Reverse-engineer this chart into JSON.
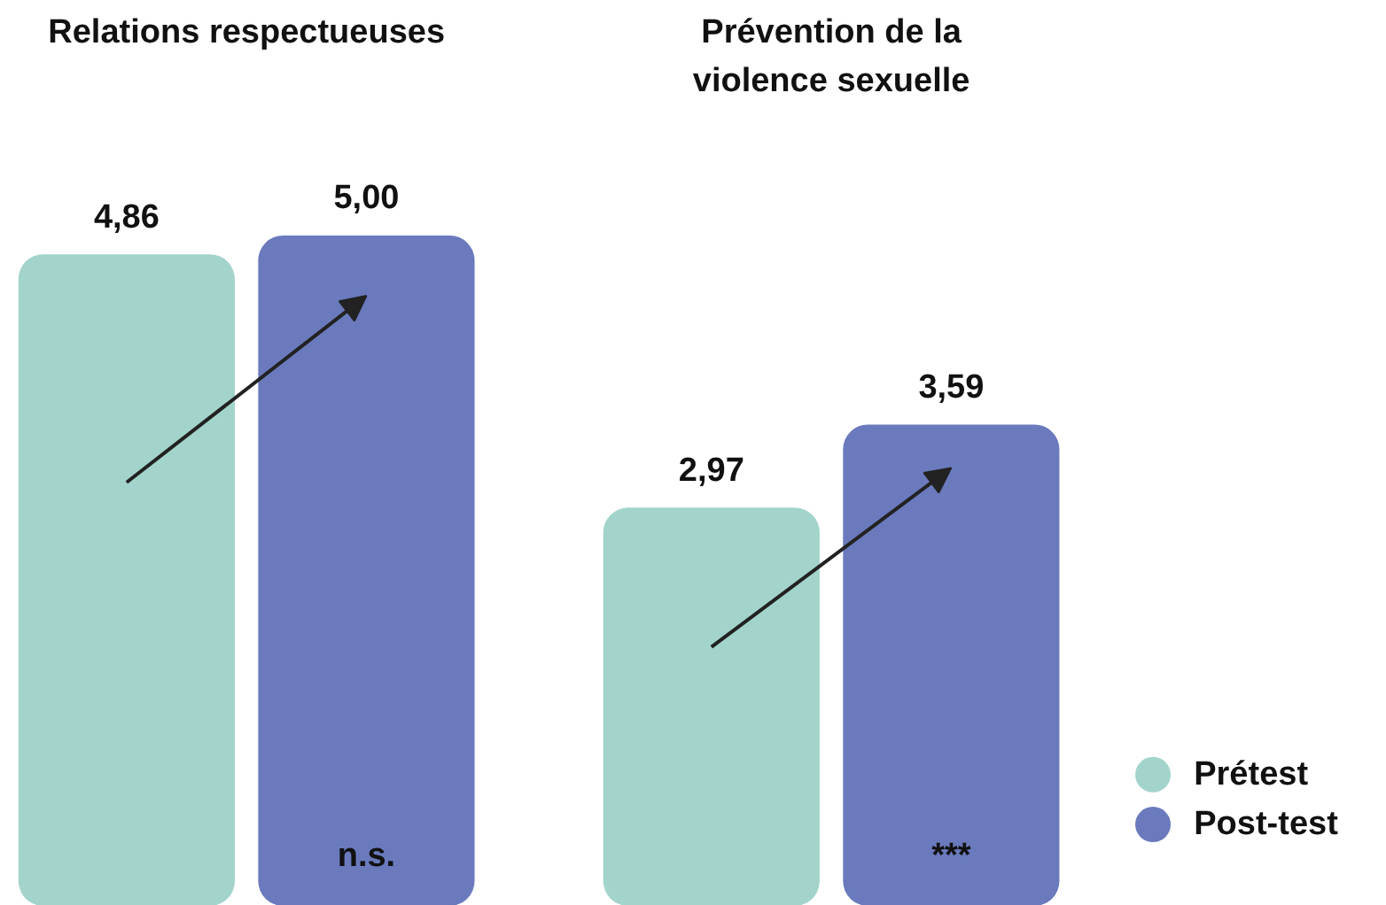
{
  "chart_data": {
    "type": "bar",
    "categories": [
      "Relations respectueuses",
      "Prévention de la violence sexuelle"
    ],
    "series": [
      {
        "name": "Prétest",
        "color": "#a2d4cb",
        "values": [
          4.86,
          2.97
        ],
        "value_labels": [
          "4,86",
          "2,97"
        ]
      },
      {
        "name": "Post-test",
        "color": "#6a7abd",
        "values": [
          5.0,
          3.59
        ],
        "value_labels": [
          "5,00",
          "3,59"
        ]
      }
    ],
    "annotations": [
      "n.s.",
      "***"
    ],
    "legend": "bottom right"
  }
}
